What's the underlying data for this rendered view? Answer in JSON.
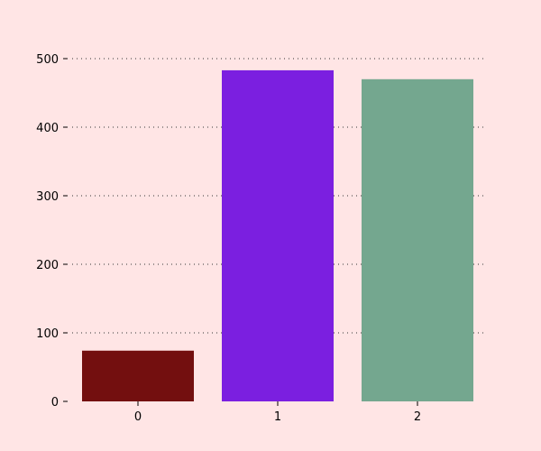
{
  "chart_data": {
    "type": "bar",
    "categories": [
      "0",
      "1",
      "2"
    ],
    "values": [
      74,
      483,
      470
    ],
    "colors": [
      "#730f0f",
      "#7b1fe0",
      "#74a78f"
    ],
    "title": "",
    "xlabel": "",
    "ylabel": "",
    "ylim": [
      0,
      500
    ],
    "yticks": [
      0,
      100,
      200,
      300,
      400,
      500
    ],
    "grid": "horizontal-dotted",
    "background": "#ffe5e5",
    "legend": "none"
  }
}
